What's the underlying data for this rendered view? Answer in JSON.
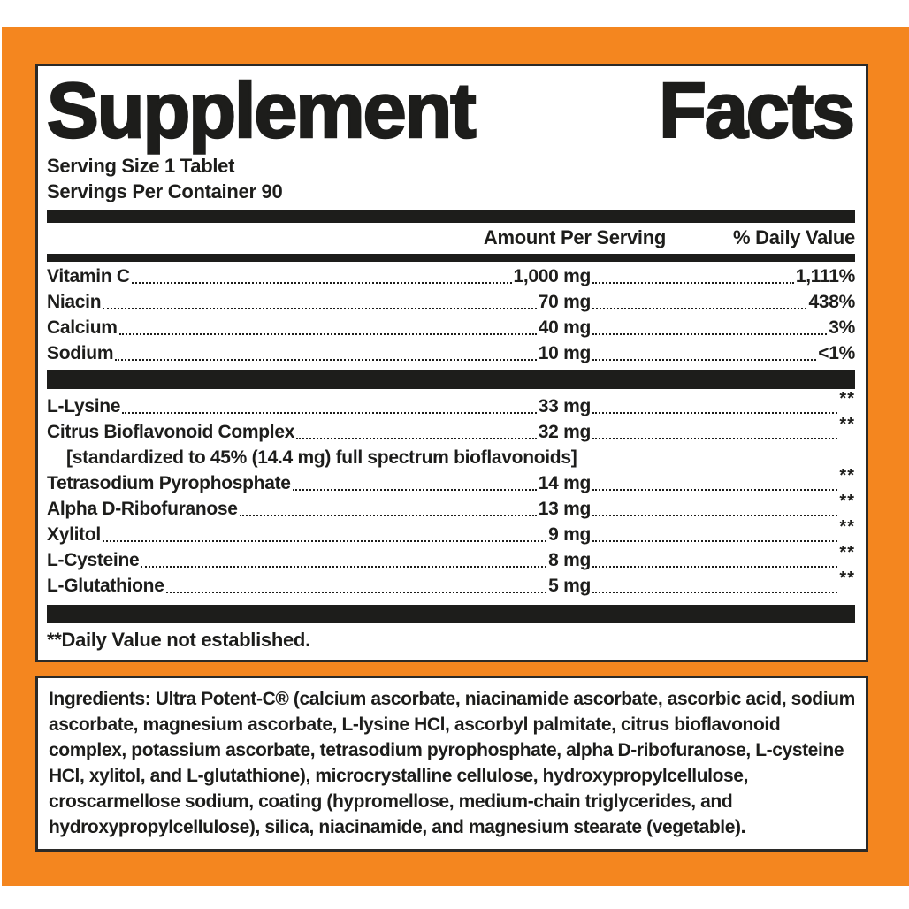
{
  "label": {
    "title_words": {
      "first": "Supplement",
      "second": "Facts"
    },
    "serving": {
      "size": "Serving Size 1 Tablet",
      "per_container": "Servings Per Container 90"
    },
    "columns": {
      "amount": "Amount Per Serving",
      "daily_value": "% Daily Value"
    },
    "section1": [
      {
        "name": "Vitamin C",
        "amount": "1,000 mg",
        "dv": "1,111%"
      },
      {
        "name": "Niacin",
        "amount": "70 mg",
        "dv": "438%"
      },
      {
        "name": "Calcium",
        "amount": "40 mg",
        "dv": "3%"
      },
      {
        "name": "Sodium",
        "amount": "10 mg",
        "dv": "<1%"
      }
    ],
    "section2": [
      {
        "name": "L-Lysine",
        "amount": "33 mg",
        "dv": "**"
      },
      {
        "name": "Citrus Bioflavonoid Complex",
        "amount": "32 mg",
        "dv": "**"
      },
      {
        "name": "Tetrasodium Pyrophosphate",
        "amount": "14 mg",
        "dv": "**"
      },
      {
        "name": "Alpha D-Ribofuranose",
        "amount": "13 mg",
        "dv": "**"
      },
      {
        "name": "Xylitol",
        "amount": "9 mg",
        "dv": "**"
      },
      {
        "name": "L-Cysteine",
        "amount": "8 mg",
        "dv": "**"
      },
      {
        "name": "L-Glutathione",
        "amount": "5 mg",
        "dv": "**"
      }
    ],
    "section2_note": "[standardized to 45% (14.4 mg) full spectrum bioflavonoids]",
    "footnote": "**Daily Value not established.",
    "colors": {
      "orange": "#F4861F",
      "ink": "#1D1D1B"
    }
  },
  "ingredients": {
    "text": "Ingredients: Ultra Potent-C® (calcium ascorbate, niacinamide ascorbate, ascorbic acid, sodium ascorbate, magnesium ascorbate, L-lysine HCl, ascorbyl palmitate, citrus bioflavonoid complex, potassium ascorbate, tetrasodium pyrophosphate, alpha D-ribofuranose, L-cysteine HCl, xylitol, and L-glutathione), microcrystalline cellulose, hydroxypropylcellulose, croscarmellose sodium, coating (hypromellose, medium-chain triglycerides, and hydroxypropylcellulose), silica, niacinamide, and magnesium stearate (vegetable)."
  }
}
